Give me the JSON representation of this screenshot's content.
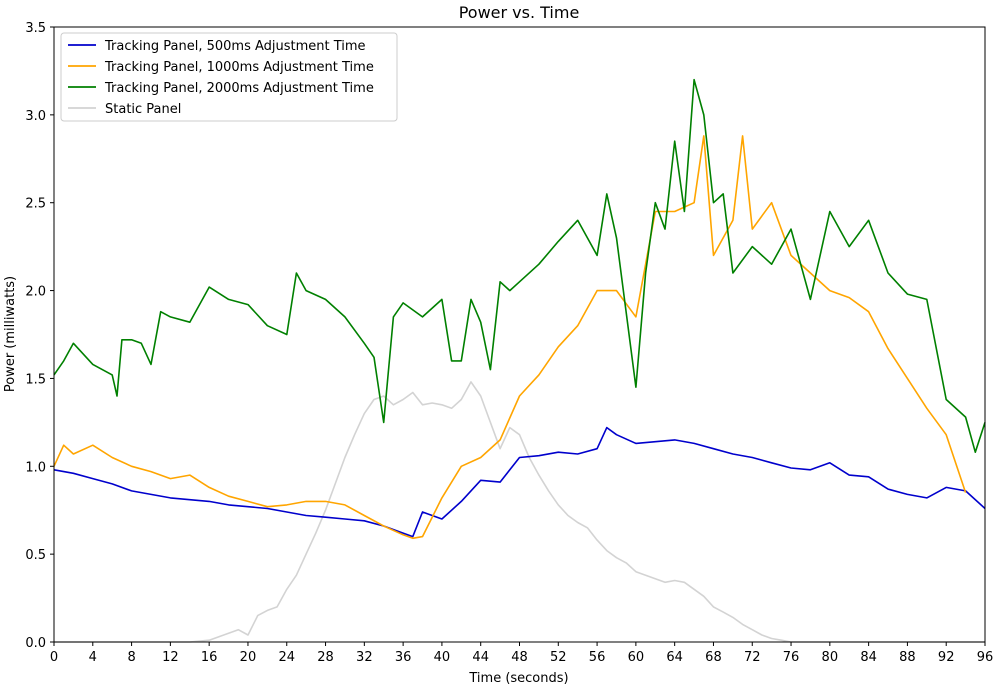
{
  "chart_data": {
    "type": "line",
    "title": "Power vs. Time",
    "xlabel": "Time (seconds)",
    "ylabel": "Power (milliwatts)",
    "xlim": [
      0,
      96
    ],
    "ylim": [
      0,
      3.5
    ],
    "x_ticks": [
      "0",
      "4",
      "8",
      "12",
      "16",
      "20",
      "24",
      "28",
      "32",
      "36",
      "40",
      "44",
      "48",
      "52",
      "56",
      "60",
      "64",
      "68",
      "72",
      "76",
      "80",
      "84",
      "88",
      "92",
      "96"
    ],
    "y_ticks": [
      "0.0",
      "0.5",
      "1.0",
      "1.5",
      "2.0",
      "2.5",
      "3.0",
      "3.5"
    ],
    "grid": false,
    "legend_position": "top-left",
    "series": [
      {
        "name": "Tracking Panel, 500ms Adjustment Time",
        "color": "#0000cc",
        "x": [
          0,
          2,
          4,
          6,
          8,
          10,
          12,
          14,
          16,
          18,
          20,
          22,
          24,
          26,
          28,
          30,
          32,
          34,
          36,
          37,
          38,
          40,
          42,
          44,
          46,
          48,
          50,
          52,
          54,
          56,
          57,
          58,
          60,
          62,
          64,
          66,
          68,
          70,
          72,
          74,
          76,
          78,
          80,
          82,
          84,
          86,
          88,
          90,
          92,
          94,
          96
        ],
        "y": [
          0.98,
          0.96,
          0.93,
          0.9,
          0.86,
          0.84,
          0.82,
          0.81,
          0.8,
          0.78,
          0.77,
          0.76,
          0.74,
          0.72,
          0.71,
          0.7,
          0.69,
          0.66,
          0.62,
          0.6,
          0.74,
          0.7,
          0.8,
          0.92,
          0.91,
          1.05,
          1.06,
          1.08,
          1.07,
          1.1,
          1.22,
          1.18,
          1.13,
          1.14,
          1.15,
          1.13,
          1.1,
          1.07,
          1.05,
          1.02,
          0.99,
          0.98,
          1.02,
          0.95,
          0.94,
          0.87,
          0.84,
          0.82,
          0.88,
          0.86,
          0.76
        ]
      },
      {
        "name": "Tracking Panel, 1000ms Adjustment Time",
        "color": "#ffa500",
        "x": [
          0,
          1,
          2,
          4,
          6,
          8,
          10,
          12,
          14,
          16,
          18,
          20,
          22,
          24,
          26,
          28,
          30,
          32,
          34,
          36,
          37,
          38,
          40,
          42,
          44,
          46,
          48,
          50,
          52,
          54,
          56,
          58,
          60,
          62,
          64,
          66,
          67,
          68,
          70,
          71,
          72,
          74,
          76,
          78,
          80,
          82,
          84,
          86,
          88,
          90,
          92,
          94
        ],
        "y": [
          1.0,
          1.12,
          1.07,
          1.12,
          1.05,
          1.0,
          0.97,
          0.93,
          0.95,
          0.88,
          0.83,
          0.8,
          0.77,
          0.78,
          0.8,
          0.8,
          0.78,
          0.72,
          0.66,
          0.61,
          0.59,
          0.6,
          0.82,
          1.0,
          1.05,
          1.15,
          1.4,
          1.52,
          1.68,
          1.8,
          2.0,
          2.0,
          1.85,
          2.45,
          2.45,
          2.5,
          2.88,
          2.2,
          2.4,
          2.88,
          2.35,
          2.5,
          2.2,
          2.1,
          2.0,
          1.96,
          1.88,
          1.67,
          1.5,
          1.33,
          1.18,
          0.85
        ]
      },
      {
        "name": "Tracking Panel, 2000ms Adjustment Time",
        "color": "#008000",
        "x": [
          0,
          1,
          2,
          4,
          6,
          6.5,
          7,
          8,
          9,
          10,
          11,
          12,
          14,
          16,
          18,
          20,
          22,
          24,
          25,
          26,
          28,
          30,
          32,
          33,
          34,
          35,
          36,
          38,
          40,
          41,
          42,
          43,
          44,
          45,
          46,
          47,
          48,
          50,
          52,
          54,
          56,
          57,
          58,
          60,
          61,
          62,
          63,
          64,
          65,
          66,
          67,
          68,
          69,
          70,
          72,
          74,
          76,
          78,
          80,
          82,
          84,
          86,
          88,
          90,
          92,
          94,
          95,
          96
        ],
        "y": [
          1.52,
          1.6,
          1.7,
          1.58,
          1.52,
          1.4,
          1.72,
          1.72,
          1.7,
          1.58,
          1.88,
          1.85,
          1.82,
          2.02,
          1.95,
          1.92,
          1.8,
          1.75,
          2.1,
          2.0,
          1.95,
          1.85,
          1.7,
          1.62,
          1.25,
          1.85,
          1.93,
          1.85,
          1.95,
          1.6,
          1.6,
          1.95,
          1.82,
          1.55,
          2.05,
          2.0,
          2.05,
          2.15,
          2.28,
          2.4,
          2.2,
          2.55,
          2.3,
          1.45,
          2.1,
          2.5,
          2.35,
          2.85,
          2.45,
          3.2,
          3.0,
          2.5,
          2.55,
          2.1,
          2.25,
          2.15,
          2.35,
          1.95,
          2.45,
          2.25,
          2.4,
          2.1,
          1.98,
          1.95,
          1.38,
          1.28,
          1.08,
          1.25
        ]
      },
      {
        "name": "Static Panel",
        "color": "#d3d3d3",
        "x": [
          0,
          14,
          16,
          17,
          18,
          19,
          20,
          21,
          22,
          23,
          24,
          25,
          26,
          27,
          28,
          29,
          30,
          31,
          32,
          33,
          34,
          35,
          36,
          37,
          38,
          39,
          40,
          41,
          42,
          43,
          44,
          45,
          46,
          47,
          48,
          49,
          50,
          51,
          52,
          53,
          54,
          55,
          56,
          57,
          58,
          59,
          60,
          61,
          62,
          63,
          64,
          65,
          66,
          67,
          68,
          69,
          70,
          71,
          72,
          73,
          74,
          75,
          76,
          77,
          78,
          96
        ],
        "y": [
          0,
          0,
          0.01,
          0.03,
          0.05,
          0.07,
          0.04,
          0.15,
          0.18,
          0.2,
          0.3,
          0.38,
          0.5,
          0.62,
          0.75,
          0.9,
          1.05,
          1.18,
          1.3,
          1.38,
          1.4,
          1.35,
          1.38,
          1.42,
          1.35,
          1.36,
          1.35,
          1.33,
          1.38,
          1.48,
          1.4,
          1.25,
          1.1,
          1.22,
          1.18,
          1.05,
          0.95,
          0.86,
          0.78,
          0.72,
          0.68,
          0.65,
          0.58,
          0.52,
          0.48,
          0.45,
          0.4,
          0.38,
          0.36,
          0.34,
          0.35,
          0.34,
          0.3,
          0.26,
          0.2,
          0.17,
          0.14,
          0.1,
          0.07,
          0.04,
          0.02,
          0.01,
          0.0,
          0.0,
          0.0,
          0.0
        ]
      }
    ]
  }
}
